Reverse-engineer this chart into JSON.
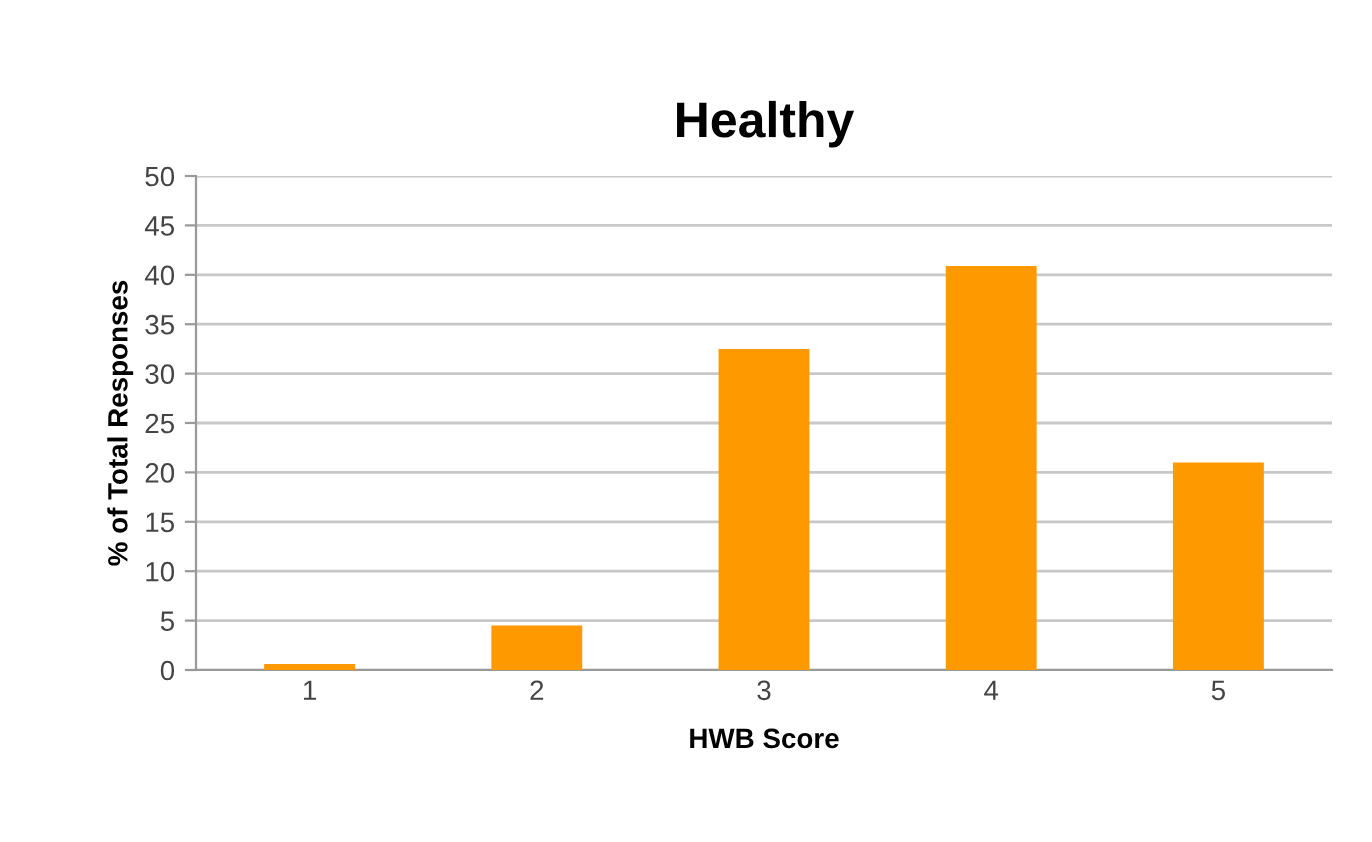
{
  "chart_data": {
    "type": "bar",
    "title": "Healthy",
    "xlabel": "HWB Score",
    "ylabel": "% of Total Responses",
    "categories": [
      "1",
      "2",
      "3",
      "4",
      "5"
    ],
    "values": [
      0.6,
      4.5,
      32.5,
      40.9,
      21.0
    ],
    "color": "#ff9900",
    "ylim": [
      0,
      50
    ],
    "yticks": [
      0,
      5,
      10,
      15,
      20,
      25,
      30,
      35,
      40,
      45,
      50
    ],
    "grid": "y",
    "legend": false
  }
}
